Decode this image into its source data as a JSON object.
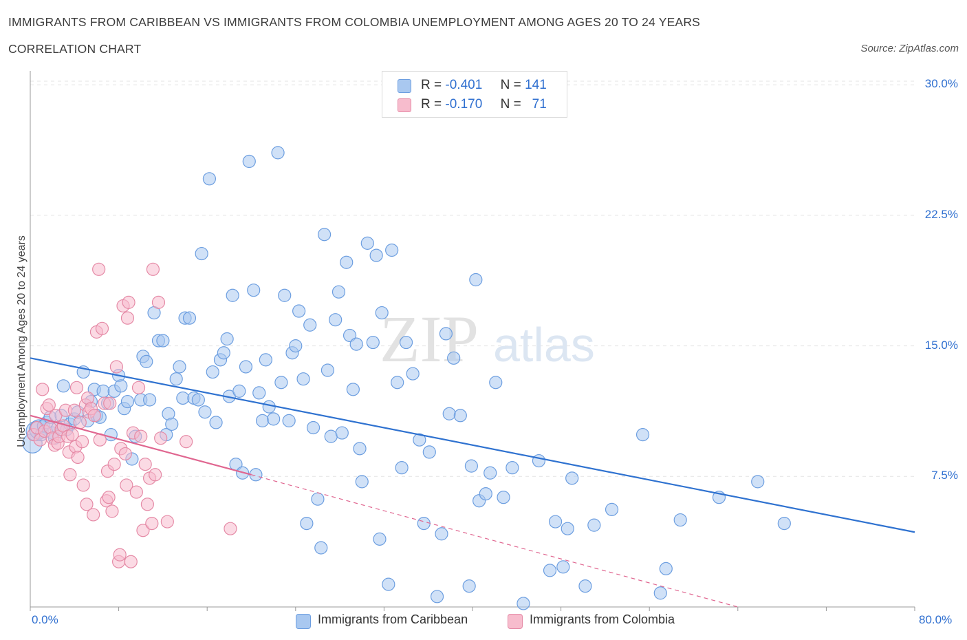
{
  "title": "IMMIGRANTS FROM CARIBBEAN VS IMMIGRANTS FROM COLOMBIA UNEMPLOYMENT AMONG AGES 20 TO 24 YEARS",
  "subtitle": "CORRELATION CHART",
  "source": "Source: ZipAtlas.com",
  "watermark": {
    "zip": "ZIP",
    "atlas": "atlas"
  },
  "legend_top": {
    "r_label": "R =",
    "n_label": "N =",
    "rows": [
      {
        "r": "-0.401",
        "n": "141",
        "color": "#a9c8f0",
        "edge": "#6c9ee0"
      },
      {
        "r": "-0.170",
        "n": "71",
        "color": "#f7bccd",
        "edge": "#e58aa6"
      }
    ]
  },
  "chart_data": {
    "type": "scatter",
    "title": "IMMIGRANTS FROM CARIBBEAN VS IMMIGRANTS FROM COLOMBIA UNEMPLOYMENT AMONG AGES 20 TO 24 YEARS",
    "subtitle": "CORRELATION CHART",
    "xlabel": "",
    "ylabel": "Unemployment Among Ages 20 to 24 years",
    "xlim": [
      0,
      80
    ],
    "ylim": [
      0,
      30.8
    ],
    "x_tick_labels": [
      "0.0%",
      "80.0%"
    ],
    "y_ticks": [
      7.5,
      15.0,
      22.5,
      30.0
    ],
    "y_tick_labels": [
      "7.5%",
      "15.0%",
      "22.5%",
      "30.0%"
    ],
    "grid": true,
    "legend_position": "bottom",
    "series": [
      {
        "name": "Immigrants from Caribbean",
        "color": "#a9c8f0",
        "edge": "#6c9ee0",
        "line_color": "#2f72d0",
        "trend": {
          "x0": 0,
          "y0": 14.3,
          "x1": 80,
          "y1": 4.3,
          "dashed_to": null
        },
        "points": [
          [
            0.2,
            9.4
          ],
          [
            0.5,
            10.1
          ],
          [
            0.8,
            10.2
          ],
          [
            1.0,
            9.9
          ],
          [
            1.2,
            10.4
          ],
          [
            1.5,
            10.6
          ],
          [
            1.8,
            10.9
          ],
          [
            2.0,
            10.0
          ],
          [
            2.2,
            9.7
          ],
          [
            2.5,
            10.3
          ],
          [
            2.8,
            11.0
          ],
          [
            3.0,
            12.7
          ],
          [
            3.3,
            10.2
          ],
          [
            3.6,
            10.5
          ],
          [
            4.0,
            10.8
          ],
          [
            4.3,
            11.2
          ],
          [
            4.8,
            13.5
          ],
          [
            5.2,
            10.7
          ],
          [
            5.5,
            11.8
          ],
          [
            5.8,
            12.5
          ],
          [
            6.0,
            11.0
          ],
          [
            6.3,
            10.9
          ],
          [
            6.6,
            12.4
          ],
          [
            7.0,
            11.7
          ],
          [
            7.3,
            9.9
          ],
          [
            7.6,
            12.4
          ],
          [
            8.0,
            13.3
          ],
          [
            8.2,
            12.7
          ],
          [
            8.5,
            11.4
          ],
          [
            8.8,
            11.8
          ],
          [
            9.2,
            8.5
          ],
          [
            9.5,
            9.8
          ],
          [
            10.0,
            11.9
          ],
          [
            10.2,
            14.4
          ],
          [
            10.5,
            14.1
          ],
          [
            10.8,
            11.9
          ],
          [
            11.2,
            16.9
          ],
          [
            11.6,
            15.3
          ],
          [
            12.0,
            15.3
          ],
          [
            12.3,
            9.9
          ],
          [
            12.5,
            11.1
          ],
          [
            12.8,
            10.5
          ],
          [
            13.2,
            13.1
          ],
          [
            13.5,
            13.8
          ],
          [
            13.8,
            12.0
          ],
          [
            14.0,
            16.6
          ],
          [
            14.4,
            16.6
          ],
          [
            14.8,
            12.0
          ],
          [
            15.2,
            11.9
          ],
          [
            15.5,
            20.3
          ],
          [
            15.8,
            11.2
          ],
          [
            16.2,
            24.6
          ],
          [
            16.5,
            13.5
          ],
          [
            16.8,
            10.6
          ],
          [
            17.2,
            14.2
          ],
          [
            17.5,
            14.6
          ],
          [
            17.8,
            15.4
          ],
          [
            18.0,
            12.1
          ],
          [
            18.3,
            17.9
          ],
          [
            18.6,
            8.2
          ],
          [
            18.9,
            12.4
          ],
          [
            19.2,
            7.7
          ],
          [
            19.5,
            13.8
          ],
          [
            19.8,
            25.6
          ],
          [
            20.2,
            18.2
          ],
          [
            20.4,
            7.6
          ],
          [
            20.7,
            12.3
          ],
          [
            21.0,
            10.7
          ],
          [
            21.3,
            14.2
          ],
          [
            21.6,
            11.5
          ],
          [
            22.0,
            10.8
          ],
          [
            22.4,
            26.1
          ],
          [
            22.7,
            12.9
          ],
          [
            23.0,
            17.9
          ],
          [
            23.4,
            10.7
          ],
          [
            23.7,
            14.6
          ],
          [
            24.0,
            15.0
          ],
          [
            24.3,
            17.0
          ],
          [
            24.7,
            13.1
          ],
          [
            25.0,
            4.8
          ],
          [
            25.3,
            16.2
          ],
          [
            25.6,
            10.3
          ],
          [
            26.0,
            6.2
          ],
          [
            26.3,
            3.4
          ],
          [
            26.6,
            21.4
          ],
          [
            26.9,
            13.6
          ],
          [
            27.2,
            9.8
          ],
          [
            27.6,
            16.5
          ],
          [
            27.9,
            18.1
          ],
          [
            28.2,
            10.0
          ],
          [
            28.6,
            19.8
          ],
          [
            28.9,
            15.6
          ],
          [
            29.2,
            12.5
          ],
          [
            29.5,
            15.1
          ],
          [
            29.8,
            9.1
          ],
          [
            30.0,
            7.2
          ],
          [
            30.5,
            20.9
          ],
          [
            31.0,
            15.2
          ],
          [
            31.3,
            20.2
          ],
          [
            31.6,
            3.9
          ],
          [
            31.8,
            16.9
          ],
          [
            32.4,
            1.3
          ],
          [
            32.7,
            20.5
          ],
          [
            33.2,
            12.9
          ],
          [
            33.6,
            8.0
          ],
          [
            34.0,
            15.2
          ],
          [
            34.6,
            13.4
          ],
          [
            35.2,
            9.6
          ],
          [
            35.6,
            4.8
          ],
          [
            36.1,
            8.9
          ],
          [
            36.8,
            0.6
          ],
          [
            37.2,
            4.2
          ],
          [
            37.6,
            15.7
          ],
          [
            37.9,
            11.1
          ],
          [
            38.3,
            14.3
          ],
          [
            38.9,
            11.0
          ],
          [
            39.7,
            1.2
          ],
          [
            39.9,
            8.1
          ],
          [
            40.3,
            18.8
          ],
          [
            40.6,
            6.1
          ],
          [
            41.2,
            6.5
          ],
          [
            41.6,
            7.7
          ],
          [
            42.1,
            12.9
          ],
          [
            42.8,
            6.3
          ],
          [
            43.6,
            8.0
          ],
          [
            44.6,
            0.2
          ],
          [
            46.0,
            8.4
          ],
          [
            47.0,
            2.1
          ],
          [
            47.5,
            4.9
          ],
          [
            48.2,
            2.3
          ],
          [
            48.6,
            4.5
          ],
          [
            49.0,
            7.4
          ],
          [
            50.2,
            1.2
          ],
          [
            51.0,
            4.7
          ],
          [
            52.6,
            5.6
          ],
          [
            55.4,
            9.9
          ],
          [
            57.0,
            0.8
          ],
          [
            57.5,
            2.2
          ],
          [
            58.8,
            5.0
          ],
          [
            62.3,
            6.3
          ],
          [
            65.8,
            7.2
          ],
          [
            68.2,
            4.8
          ]
        ]
      },
      {
        "name": "Immigrants from Colombia",
        "color": "#f7bccd",
        "edge": "#e58aa6",
        "line_color": "#e06690",
        "trend": {
          "x0": 0,
          "y0": 11.0,
          "x1": 20.0,
          "y1": 7.6,
          "dashed_to": [
            64,
            0
          ]
        },
        "points": [
          [
            0.3,
            9.9
          ],
          [
            0.6,
            10.3
          ],
          [
            0.9,
            9.6
          ],
          [
            1.1,
            12.5
          ],
          [
            1.3,
            10.1
          ],
          [
            1.5,
            11.4
          ],
          [
            1.7,
            11.6
          ],
          [
            1.8,
            10.3
          ],
          [
            2.0,
            9.7
          ],
          [
            2.2,
            9.3
          ],
          [
            2.3,
            11.0
          ],
          [
            2.5,
            9.4
          ],
          [
            2.6,
            9.8
          ],
          [
            2.8,
            10.2
          ],
          [
            3.0,
            10.4
          ],
          [
            3.2,
            11.3
          ],
          [
            3.4,
            9.8
          ],
          [
            3.5,
            8.9
          ],
          [
            3.6,
            7.6
          ],
          [
            3.8,
            9.9
          ],
          [
            4.0,
            11.3
          ],
          [
            4.1,
            9.2
          ],
          [
            4.2,
            12.6
          ],
          [
            4.3,
            8.6
          ],
          [
            4.5,
            10.6
          ],
          [
            4.7,
            9.5
          ],
          [
            4.8,
            7.0
          ],
          [
            5.0,
            11.6
          ],
          [
            5.1,
            5.9
          ],
          [
            5.2,
            12.0
          ],
          [
            5.3,
            11.2
          ],
          [
            5.5,
            11.4
          ],
          [
            5.7,
            5.3
          ],
          [
            5.8,
            11.0
          ],
          [
            6.0,
            15.8
          ],
          [
            6.2,
            19.4
          ],
          [
            6.3,
            9.6
          ],
          [
            6.5,
            16.0
          ],
          [
            6.7,
            11.7
          ],
          [
            6.9,
            6.1
          ],
          [
            7.0,
            7.8
          ],
          [
            7.1,
            6.3
          ],
          [
            7.2,
            11.7
          ],
          [
            7.4,
            5.5
          ],
          [
            7.6,
            8.2
          ],
          [
            7.8,
            13.8
          ],
          [
            8.0,
            2.6
          ],
          [
            8.1,
            3.0
          ],
          [
            8.2,
            9.1
          ],
          [
            8.4,
            17.3
          ],
          [
            8.6,
            8.8
          ],
          [
            8.7,
            7.0
          ],
          [
            8.8,
            16.6
          ],
          [
            8.9,
            17.5
          ],
          [
            9.1,
            2.6
          ],
          [
            9.3,
            10.0
          ],
          [
            9.6,
            6.6
          ],
          [
            9.8,
            12.6
          ],
          [
            10.0,
            9.8
          ],
          [
            10.2,
            4.4
          ],
          [
            10.4,
            8.2
          ],
          [
            10.6,
            5.9
          ],
          [
            10.8,
            7.4
          ],
          [
            11.0,
            4.8
          ],
          [
            11.1,
            19.4
          ],
          [
            11.3,
            7.6
          ],
          [
            11.6,
            17.5
          ],
          [
            11.8,
            9.7
          ],
          [
            12.4,
            4.9
          ],
          [
            14.1,
            9.5
          ],
          [
            18.1,
            4.5
          ]
        ]
      }
    ]
  },
  "legend_bottom": {
    "items": [
      {
        "label": "Immigrants from Caribbean",
        "color": "#a9c8f0",
        "edge": "#6c9ee0"
      },
      {
        "label": "Immigrants from Colombia",
        "color": "#f7bccd",
        "edge": "#e58aa6"
      }
    ]
  }
}
